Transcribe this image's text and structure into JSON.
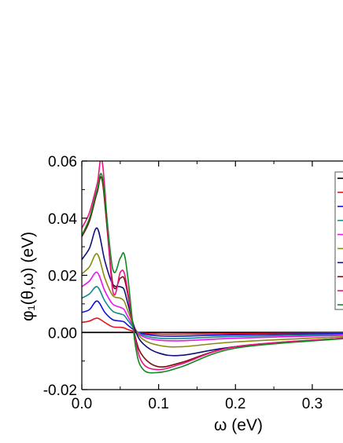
{
  "chart_data": {
    "type": "line",
    "xlabel": "ω (eV)",
    "ylabel": "φ₁(θ,ω) (eV)",
    "xlim": [
      0.0,
      0.34
    ],
    "ylim": [
      -0.02,
      0.06
    ],
    "x_ticks": [
      "0.0",
      "0.1",
      "0.2",
      "0.3"
    ],
    "x_tick_values": [
      0.0,
      0.1,
      0.2,
      0.3
    ],
    "y_ticks": [
      "0.06",
      "0.04",
      "0.02",
      "0.00",
      "-0.02"
    ],
    "y_tick_values": [
      0.06,
      0.04,
      0.02,
      0.0,
      -0.02
    ],
    "legend_placement": "top-right (partially cropped)",
    "zero_line": true,
    "series": [
      {
        "color": "#000000",
        "values_x": [
          0,
          0.34
        ],
        "values_y": [
          0,
          0
        ]
      },
      {
        "color": "#e8131b",
        "values_x": [
          0.0,
          0.01,
          0.02,
          0.03,
          0.04,
          0.05,
          0.055,
          0.06,
          0.07,
          0.08,
          0.1,
          0.13,
          0.2,
          0.34
        ],
        "values_y": [
          0.0035,
          0.004,
          0.005,
          0.0035,
          0.002,
          0.0018,
          0.0016,
          0.001,
          0.0002,
          -0.0003,
          -0.0006,
          -0.0006,
          -0.0004,
          -0.0002
        ]
      },
      {
        "color": "#1414d8",
        "values_x": [
          0.0,
          0.01,
          0.02,
          0.03,
          0.04,
          0.05,
          0.055,
          0.06,
          0.07,
          0.08,
          0.1,
          0.13,
          0.2,
          0.34
        ],
        "values_y": [
          0.007,
          0.008,
          0.011,
          0.007,
          0.0045,
          0.004,
          0.0037,
          0.0025,
          0.0005,
          -0.0005,
          -0.0012,
          -0.0013,
          -0.0008,
          -0.0004
        ]
      },
      {
        "color": "#108a8a",
        "values_x": [
          0.0,
          0.01,
          0.02,
          0.03,
          0.04,
          0.05,
          0.055,
          0.06,
          0.07,
          0.08,
          0.1,
          0.13,
          0.2,
          0.34
        ],
        "values_y": [
          0.012,
          0.0135,
          0.016,
          0.011,
          0.0075,
          0.0065,
          0.006,
          0.0042,
          0.0008,
          -0.001,
          -0.002,
          -0.0021,
          -0.0014,
          -0.0007
        ]
      },
      {
        "color": "#ee12ee",
        "values_x": [
          0.0,
          0.01,
          0.02,
          0.03,
          0.04,
          0.05,
          0.055,
          0.06,
          0.07,
          0.08,
          0.1,
          0.13,
          0.2,
          0.34
        ],
        "values_y": [
          0.016,
          0.018,
          0.021,
          0.0145,
          0.01,
          0.0088,
          0.008,
          0.0055,
          0.001,
          -0.0015,
          -0.0027,
          -0.0029,
          -0.002,
          -0.001
        ]
      },
      {
        "color": "#8a8a10",
        "values_x": [
          0.0,
          0.01,
          0.02,
          0.03,
          0.04,
          0.05,
          0.055,
          0.06,
          0.07,
          0.08,
          0.1,
          0.13,
          0.2,
          0.34
        ],
        "values_y": [
          0.0205,
          0.023,
          0.0275,
          0.019,
          0.013,
          0.012,
          0.011,
          0.0075,
          0.001,
          -0.0025,
          -0.0045,
          -0.005,
          -0.0033,
          -0.0015
        ]
      },
      {
        "color": "#10107a",
        "values_x": [
          0.0,
          0.01,
          0.02,
          0.03,
          0.04,
          0.05,
          0.055,
          0.06,
          0.07,
          0.08,
          0.1,
          0.13,
          0.2,
          0.34
        ],
        "values_y": [
          0.0255,
          0.0295,
          0.0365,
          0.025,
          0.017,
          0.016,
          0.015,
          0.01,
          0.0005,
          -0.004,
          -0.0072,
          -0.008,
          -0.005,
          -0.002
        ]
      },
      {
        "color": "#7a1010",
        "values_x": [
          0.0,
          0.01,
          0.02,
          0.027,
          0.04,
          0.05,
          0.055,
          0.06,
          0.07,
          0.08,
          0.1,
          0.13,
          0.2,
          0.34
        ],
        "values_y": [
          0.0335,
          0.039,
          0.049,
          0.0525,
          0.0175,
          0.019,
          0.019,
          0.013,
          -0.002,
          -0.0085,
          -0.012,
          -0.0105,
          -0.005,
          -0.002
        ]
      },
      {
        "color": "#ee1080",
        "values_x": [
          0.0,
          0.01,
          0.02,
          0.027,
          0.04,
          0.05,
          0.055,
          0.06,
          0.07,
          0.08,
          0.1,
          0.13,
          0.2,
          0.34
        ],
        "values_y": [
          0.0365,
          0.042,
          0.052,
          0.059,
          0.015,
          0.021,
          0.021,
          0.014,
          -0.003,
          -0.011,
          -0.013,
          -0.011,
          -0.005,
          -0.002
        ]
      },
      {
        "color": "#108a20",
        "values_x": [
          0.0,
          0.01,
          0.02,
          0.027,
          0.04,
          0.05,
          0.055,
          0.06,
          0.07,
          0.08,
          0.1,
          0.13,
          0.2,
          0.34
        ],
        "values_y": [
          0.034,
          0.04,
          0.05,
          0.054,
          0.0225,
          0.026,
          0.0275,
          0.019,
          -0.005,
          -0.013,
          -0.014,
          -0.012,
          -0.0055,
          -0.0022
        ]
      }
    ]
  },
  "legend": {
    "colors": [
      "#000000",
      "#e8131b",
      "#1414d8",
      "#108a8a",
      "#ee12ee",
      "#8a8a10",
      "#10107a",
      "#7a1010",
      "#ee1080",
      "#108a20"
    ]
  }
}
